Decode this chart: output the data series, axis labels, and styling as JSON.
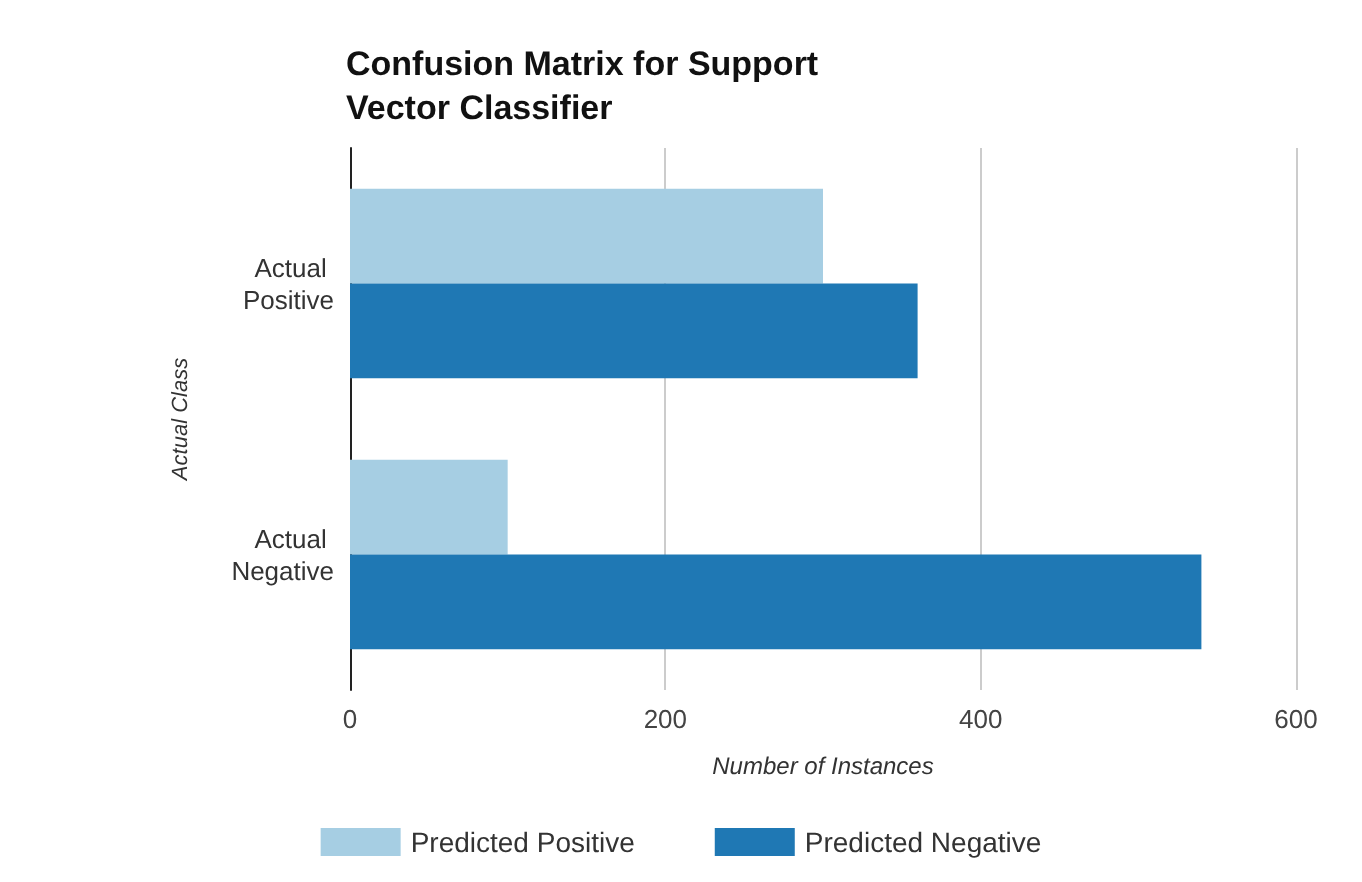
{
  "chart_data": {
    "type": "bar",
    "orientation": "horizontal",
    "title": "Confusion Matrix for Support Vector Classifier",
    "xlabel": "Number of Instances",
    "ylabel": "Actual Class",
    "categories": [
      "Actual Positive",
      "Actual Negative"
    ],
    "series": [
      {
        "name": "Predicted Positive",
        "color": "#a6cee3",
        "values": [
          300,
          100
        ]
      },
      {
        "name": "Predicted Negative",
        "color": "#1f78b4",
        "values": [
          360,
          540
        ]
      }
    ],
    "xlim": [
      0,
      600
    ],
    "xticks": [
      0,
      200,
      400,
      600
    ],
    "grid": "x",
    "legend": "bottom"
  }
}
